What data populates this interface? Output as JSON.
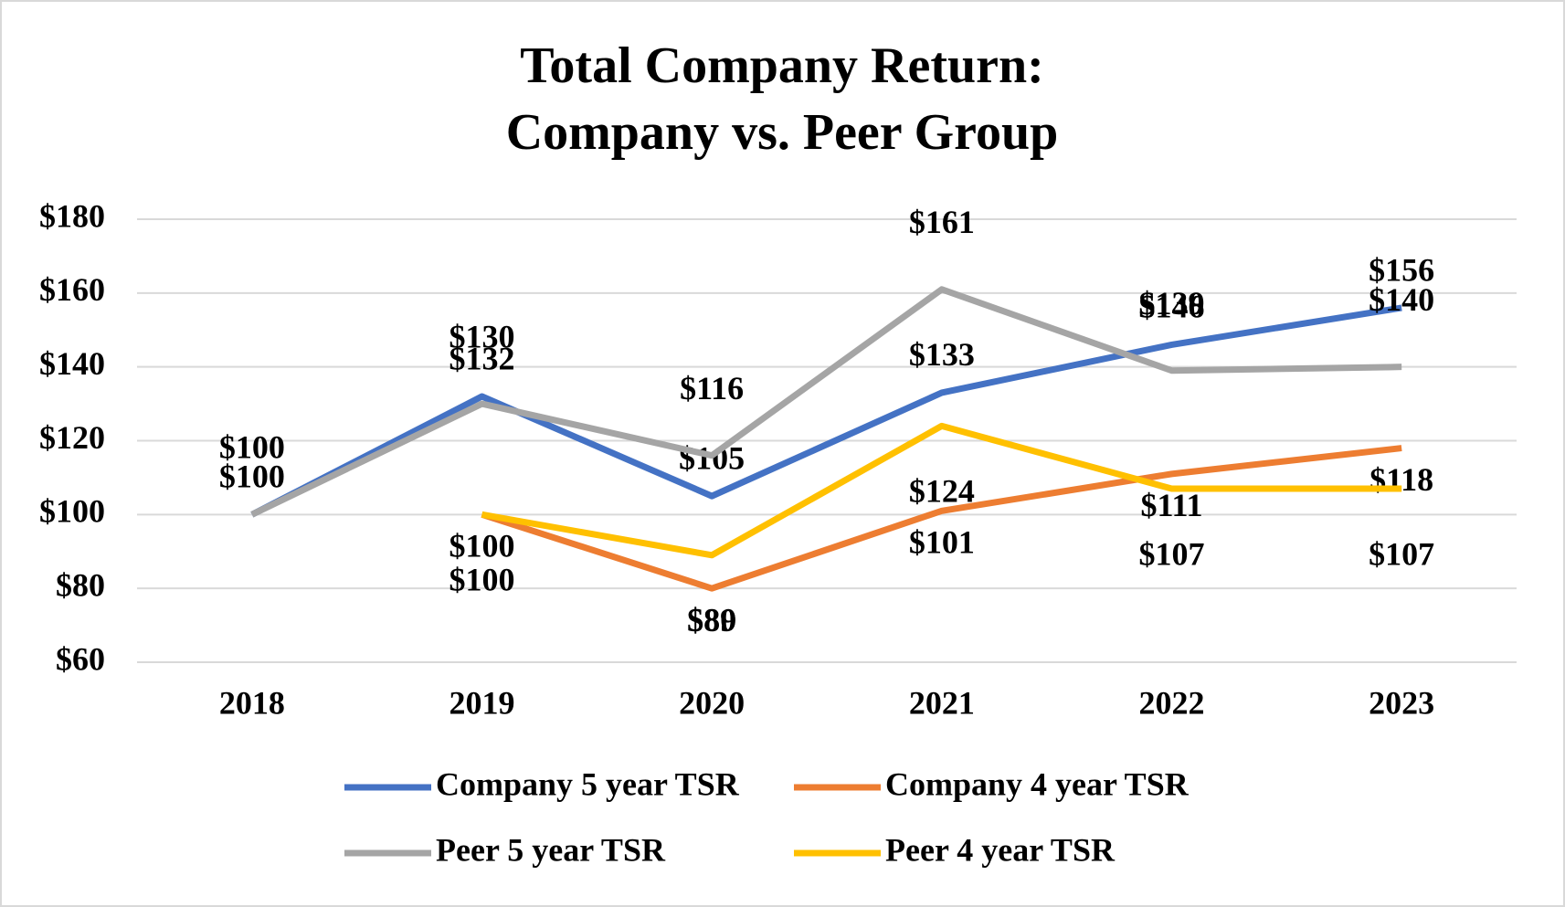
{
  "chart_data": {
    "type": "line",
    "title": [
      "Total Company Return:",
      "Company vs. Peer Group"
    ],
    "categories": [
      "2018",
      "2019",
      "2020",
      "2021",
      "2022",
      "2023"
    ],
    "series": [
      {
        "name": "Company 5 year TSR",
        "color": "#4472c4",
        "values": [
          100,
          132,
          105,
          133,
          146,
          156
        ],
        "value_labels": [
          "$100",
          "$132",
          "$105",
          "$133",
          "$146",
          "$156"
        ]
      },
      {
        "name": "Company 4 year TSR",
        "color": "#ed7d31",
        "values": [
          null,
          100,
          80,
          101,
          111,
          118
        ],
        "value_labels": [
          null,
          "$100",
          "$80",
          "$101",
          "$111",
          "$118"
        ]
      },
      {
        "name": "Peer 5 year TSR",
        "color": "#a5a5a5",
        "values": [
          100,
          130,
          116,
          161,
          139,
          140
        ],
        "value_labels": [
          "$100",
          "$130",
          "$116",
          "$161",
          "$139",
          "$140"
        ]
      },
      {
        "name": "Peer 4 year TSR",
        "color": "#ffc000",
        "values": [
          null,
          100,
          89,
          124,
          107,
          107
        ],
        "value_labels": [
          null,
          "$100",
          "$89",
          "$124",
          "$107",
          "$107"
        ]
      }
    ],
    "ylim": [
      60,
      180
    ],
    "yticks": [
      {
        "value": 60,
        "label": "$60"
      },
      {
        "value": 80,
        "label": "$80"
      },
      {
        "value": 100,
        "label": "$100"
      },
      {
        "value": 120,
        "label": "$120"
      },
      {
        "value": 140,
        "label": "$140"
      },
      {
        "value": 160,
        "label": "$160"
      },
      {
        "value": 180,
        "label": "$180"
      }
    ],
    "grid": true,
    "legend": "bottom"
  }
}
